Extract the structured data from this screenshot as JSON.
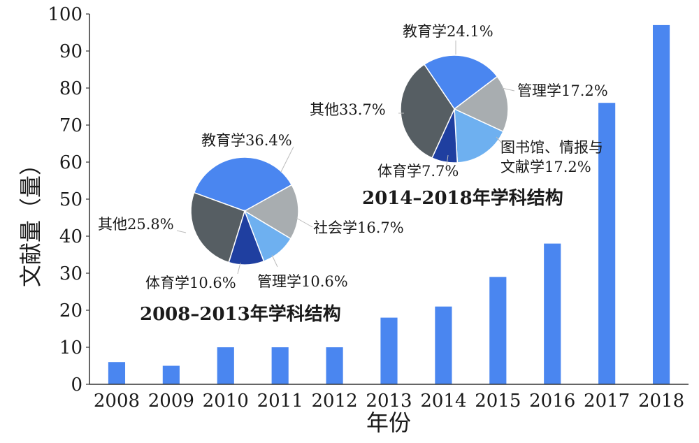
{
  "chart_data": [
    {
      "type": "bar",
      "categories": [
        "2008",
        "2009",
        "2010",
        "2011",
        "2012",
        "2013",
        "2014",
        "2015",
        "2016",
        "2017",
        "2018"
      ],
      "values": [
        6,
        5,
        10,
        10,
        10,
        18,
        21,
        29,
        38,
        76,
        97
      ],
      "xlabel": "年份",
      "ylabel": "文献量（量）",
      "ylim": [
        0,
        100
      ],
      "yticks": [
        0,
        10,
        20,
        30,
        40,
        50,
        60,
        70,
        80,
        90,
        100
      ],
      "bar_color": "#4a86f0",
      "grid": false
    },
    {
      "type": "pie",
      "title": "2008–2013年学科结构",
      "slices": [
        {
          "label": "教育学",
          "value": 36.4,
          "text": "教育学36.4%",
          "color": "#4a86f0"
        },
        {
          "label": "社会学",
          "value": 16.7,
          "text": "社会学16.7%",
          "color": "#a8adb0"
        },
        {
          "label": "管理学",
          "value": 10.6,
          "text": "管理学10.6%",
          "color": "#6eb0f0"
        },
        {
          "label": "体育学",
          "value": 10.6,
          "text": "体育学10.6%",
          "color": "#1f3fa0"
        },
        {
          "label": "其他",
          "value": 25.8,
          "text": "其他25.8%",
          "color": "#565e63"
        }
      ]
    },
    {
      "type": "pie",
      "title": "2014–2018年学科结构",
      "slices": [
        {
          "label": "教育学",
          "value": 24.1,
          "text": "教育学24.1%",
          "color": "#4a86f0"
        },
        {
          "label": "管理学",
          "value": 17.2,
          "text": "管理学17.2%",
          "color": "#a8adb0"
        },
        {
          "label": "图书馆、情报与文献学",
          "value": 17.2,
          "text_line1": "图书馆、情报与",
          "text_line2": "文献学17.2%",
          "color": "#6eb0f0"
        },
        {
          "label": "体育学",
          "value": 7.7,
          "text": "体育学7.7%",
          "color": "#1f3fa0"
        },
        {
          "label": "其他",
          "value": 33.7,
          "text": "其他33.7%",
          "color": "#565e63"
        }
      ]
    }
  ]
}
